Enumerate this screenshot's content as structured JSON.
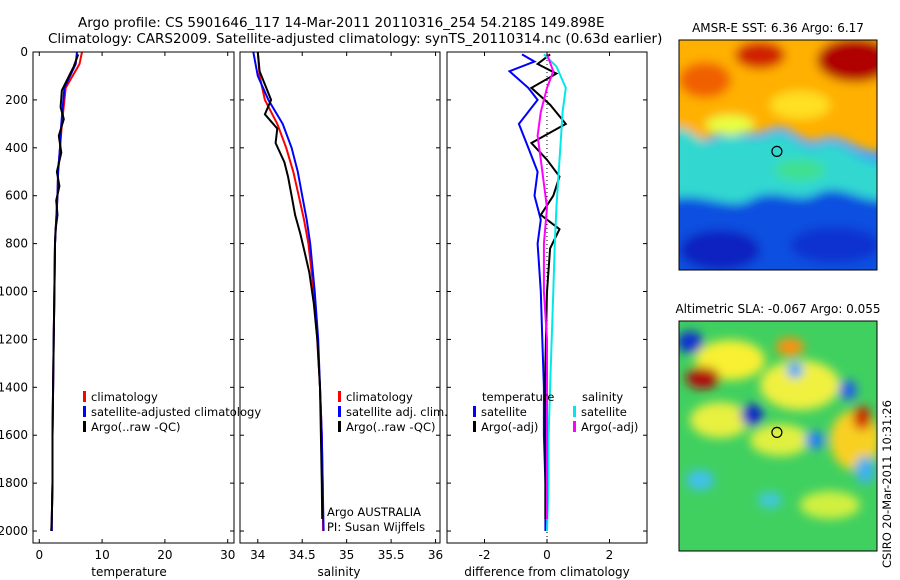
{
  "header": {
    "line1": "Argo profile: CS 5901646_117 14-Mar-2011 20110316_254 54.218S 149.898E",
    "line2": "Climatology: CARS2009. Satellite-adjusted climatology: synTS_20110314.nc (0.63d earlier)"
  },
  "colors": {
    "climatology": "#ff0000",
    "satellite": "#0000ff",
    "argo": "#000000",
    "salinity_satellite": "#00e8e8",
    "salinity_argo": "#ff00ff"
  },
  "chart_data": [
    {
      "type": "line",
      "id": "temperature",
      "xlabel": "temperature",
      "xlim": [
        -1,
        31
      ],
      "ylim": [
        0,
        2050
      ],
      "y_reversed": true,
      "xticks": [
        0,
        10,
        20,
        30
      ],
      "yticks": [
        0,
        200,
        400,
        600,
        800,
        1000,
        1200,
        1400,
        1600,
        1800,
        2000
      ],
      "legend": [
        "climatology",
        "satellite-adjusted climatology",
        "Argo(..raw -QC)"
      ],
      "series": [
        {
          "name": "climatology",
          "color": "#ff0000",
          "x": [
            6.8,
            6.4,
            4.2,
            3.6,
            3.3,
            3.0,
            2.9,
            2.7,
            2.5,
            2.4,
            2.3,
            2.2,
            2.1,
            2.1,
            2.0,
            2.0
          ],
          "y": [
            0,
            50,
            150,
            300,
            400,
            500,
            600,
            700,
            800,
            1000,
            1200,
            1400,
            1600,
            1800,
            1950,
            2000
          ]
        },
        {
          "name": "satellite-adjusted climatology",
          "color": "#0000ff",
          "x": [
            6.0,
            5.8,
            4.0,
            3.5,
            3.3,
            3.0,
            2.9,
            2.7,
            2.5,
            2.4,
            2.3,
            2.2,
            2.1,
            2.1,
            2.0,
            2.0
          ],
          "y": [
            0,
            50,
            150,
            300,
            400,
            500,
            600,
            700,
            800,
            1000,
            1200,
            1400,
            1600,
            1800,
            1950,
            2000
          ]
        },
        {
          "name": "Argo(..raw -QC)",
          "color": "#000000",
          "x": [
            6.2,
            5.5,
            3.6,
            3.4,
            3.9,
            3.1,
            3.5,
            2.8,
            3.2,
            2.7,
            2.9,
            2.6,
            2.5,
            2.4,
            2.3,
            2.2,
            2.1,
            2.1,
            2.0,
            1.9
          ],
          "y": [
            10,
            60,
            160,
            230,
            280,
            350,
            420,
            500,
            560,
            620,
            680,
            740,
            800,
            1000,
            1200,
            1400,
            1600,
            1800,
            1950,
            2000
          ]
        }
      ]
    },
    {
      "type": "line",
      "id": "salinity",
      "xlabel": "salinity",
      "xlim": [
        33.8,
        36.05
      ],
      "ylim": [
        0,
        2050
      ],
      "y_reversed": true,
      "xticks": [
        34,
        34.5,
        35,
        35.5,
        36
      ],
      "xticklabels": [
        "34",
        "34.5",
        "35",
        "35.5",
        "36"
      ],
      "legend": [
        "climatology",
        "satellite adj. clim.",
        "Argo(..raw -QC)"
      ],
      "annotations": [
        "Argo AUSTRALIA",
        "PI: Susan Wijffels"
      ],
      "series": [
        {
          "name": "climatology",
          "color": "#ff0000",
          "x": [
            34.0,
            34.02,
            34.08,
            34.22,
            34.32,
            34.4,
            34.46,
            34.52,
            34.57,
            34.63,
            34.67,
            34.7,
            34.72,
            34.73,
            34.735
          ],
          "y": [
            0,
            100,
            200,
            300,
            400,
            500,
            600,
            700,
            800,
            1000,
            1200,
            1400,
            1600,
            1800,
            2000
          ]
        },
        {
          "name": "satellite adj. clim.",
          "color": "#0000ff",
          "x": [
            33.95,
            34.0,
            34.12,
            34.28,
            34.38,
            34.45,
            34.5,
            34.55,
            34.59,
            34.64,
            34.68,
            34.7,
            34.72,
            34.73,
            34.74
          ],
          "y": [
            0,
            100,
            200,
            300,
            400,
            500,
            600,
            700,
            800,
            1000,
            1200,
            1400,
            1600,
            1800,
            2000
          ]
        },
        {
          "name": "Argo(..raw -QC)",
          "color": "#000000",
          "x": [
            34.0,
            34.02,
            34.15,
            34.08,
            34.22,
            34.2,
            34.3,
            34.34,
            34.38,
            34.42,
            34.48,
            34.53,
            34.58,
            34.63,
            34.67,
            34.7,
            34.71,
            34.72,
            34.725
          ],
          "y": [
            0,
            80,
            200,
            260,
            320,
            380,
            460,
            520,
            600,
            680,
            760,
            840,
            920,
            1050,
            1200,
            1400,
            1600,
            1800,
            1950
          ]
        }
      ]
    },
    {
      "type": "line",
      "id": "difference",
      "xlabel": "difference from climatology",
      "xlim": [
        -3.2,
        3.2
      ],
      "ylim": [
        0,
        2050
      ],
      "y_reversed": true,
      "xticks": [
        -2,
        0,
        2
      ],
      "legend": [
        {
          "group": "temperature",
          "items": [
            "satellite",
            "Argo(-adj)"
          ]
        },
        {
          "group": "salinity",
          "items": [
            "satellite",
            "Argo(-adj)"
          ]
        }
      ],
      "series": [
        {
          "name": "temperature satellite",
          "color": "#0000ff",
          "x": [
            -0.8,
            -0.4,
            -1.2,
            -0.6,
            -0.3,
            -0.9,
            -0.6,
            -0.3,
            -0.4,
            -0.2,
            -0.3,
            -0.2,
            -0.15,
            -0.1,
            -0.1,
            -0.05,
            -0.05,
            -0.05
          ],
          "y": [
            10,
            40,
            80,
            150,
            200,
            300,
            400,
            500,
            600,
            700,
            800,
            1000,
            1200,
            1400,
            1600,
            1800,
            1950,
            2000
          ]
        },
        {
          "name": "temperature Argo(-adj)",
          "color": "#000000",
          "x": [
            0.1,
            -0.3,
            0.3,
            -0.5,
            0.1,
            0.6,
            -0.5,
            0.0,
            0.4,
            0.2,
            -0.2,
            0.4,
            0.1,
            0.0,
            -0.05,
            -0.05,
            -0.05
          ],
          "y": [
            10,
            50,
            90,
            150,
            220,
            300,
            380,
            450,
            520,
            600,
            680,
            740,
            820,
            1000,
            1300,
            1600,
            1950
          ]
        },
        {
          "name": "salinity satellite",
          "color": "#00e8e8",
          "x": [
            -0.1,
            0.3,
            0.6,
            0.5,
            0.45,
            0.4,
            0.35,
            0.3,
            0.25,
            0.2,
            0.15,
            0.1,
            0.05,
            0.05,
            0.0
          ],
          "y": [
            10,
            60,
            150,
            250,
            350,
            450,
            550,
            650,
            800,
            1000,
            1200,
            1400,
            1600,
            1800,
            2000
          ]
        },
        {
          "name": "salinity Argo(-adj)",
          "color": "#ff00ff",
          "x": [
            0.0,
            0.2,
            0.0,
            -0.2,
            -0.3,
            -0.2,
            -0.1,
            0.0,
            -0.1,
            -0.1,
            0.0,
            0.0,
            0.0,
            0.0,
            0.0
          ],
          "y": [
            10,
            80,
            150,
            250,
            350,
            450,
            550,
            650,
            800,
            1000,
            1200,
            1400,
            1600,
            1800,
            1950
          ]
        }
      ]
    },
    {
      "type": "heatmap",
      "id": "sst_map",
      "title": "AMSR-E SST: 6.36  Argo: 6.17",
      "xlim": [
        141,
        159
      ],
      "ylim": [
        -60.2,
        -48.6
      ],
      "xticks": [
        145,
        150,
        155
      ],
      "yticks": [
        -50,
        -52,
        -54,
        -56,
        -58,
        -60
      ],
      "marker": {
        "lon": 149.898,
        "lat": -54.218
      }
    },
    {
      "type": "heatmap",
      "id": "sla_map",
      "title": "Altimetric SLA: -0.067  Argo: 0.055",
      "xlim": [
        141,
        159
      ],
      "ylim": [
        -60.2,
        -48.6
      ],
      "xticks": [
        145,
        150,
        155
      ],
      "yticks": [
        -50,
        -52,
        -54,
        -56,
        -58,
        -60
      ],
      "marker": {
        "lon": 149.898,
        "lat": -54.218
      }
    }
  ],
  "watermark": "CSIRO 20-Mar-2011 10:31:26"
}
